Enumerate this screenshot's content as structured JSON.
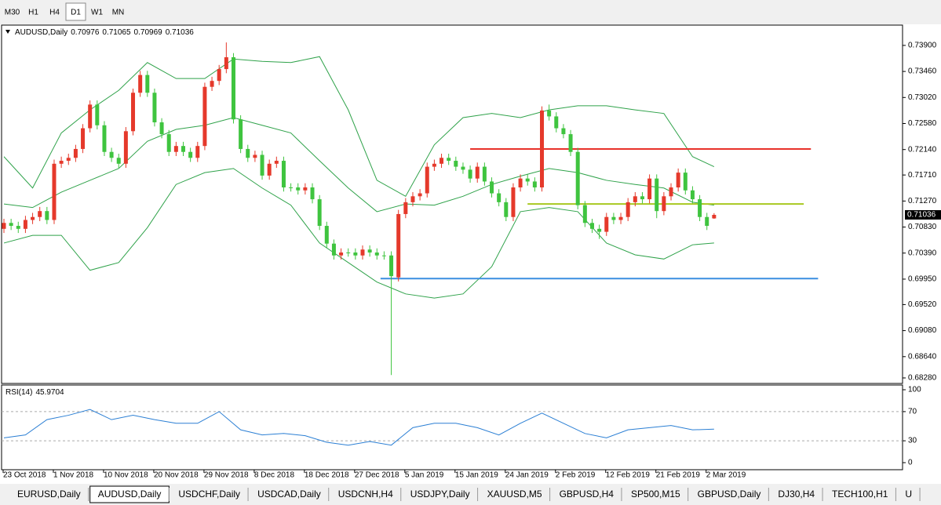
{
  "toolbar": {
    "timeframes": [
      "M30",
      "H1",
      "H4",
      "D1",
      "W1",
      "MN"
    ],
    "active": 3
  },
  "tabs": {
    "items": [
      "EURUSD,Daily",
      "AUDUSD,Daily",
      "USDCHF,Daily",
      "USDCAD,Daily",
      "USDCNH,H4",
      "USDJPY,Daily",
      "XAUUSD,M5",
      "GBPUSD,H4",
      "SP500,M15",
      "GBPUSD,Daily",
      "DJ30,H4",
      "TECH100,H1",
      "U"
    ],
    "active": 1
  },
  "chart_data": [
    {
      "type": "candlestick",
      "title": "AUDUSD,Daily",
      "categories": [
        "23 Oct 2018",
        null,
        null,
        null,
        null,
        null,
        null,
        "1 Nov 2018",
        null,
        null,
        null,
        null,
        null,
        null,
        "10 Nov 2018",
        null,
        null,
        null,
        null,
        null,
        null,
        "20 Nov 2018",
        null,
        null,
        null,
        null,
        null,
        null,
        "29 Nov 2018",
        null,
        null,
        null,
        null,
        null,
        null,
        "8 Dec 2018",
        null,
        null,
        null,
        null,
        null,
        null,
        "18 Dec 2018",
        null,
        null,
        null,
        null,
        null,
        null,
        "27 Dec 2018",
        null,
        null,
        null,
        null,
        null,
        null,
        "5 Jan 2019",
        null,
        null,
        null,
        null,
        null,
        null,
        "15 Jan 2019",
        null,
        null,
        null,
        null,
        null,
        null,
        "24 Jan 2019",
        null,
        null,
        null,
        null,
        null,
        null,
        "2 Feb 2019",
        null,
        null,
        null,
        null,
        null,
        null,
        "12 Feb 2019",
        null,
        null,
        null,
        null,
        null,
        null,
        "21 Feb 2019",
        null,
        null,
        null,
        null,
        null,
        null,
        "2 Mar 2019",
        null
      ],
      "ohlc": [
        [
          0.708,
          0.7097,
          0.7073,
          0.709
        ],
        [
          0.709,
          0.7097,
          0.7078,
          0.7085
        ],
        [
          0.7085,
          0.7092,
          0.7073,
          0.708
        ],
        [
          0.708,
          0.7102,
          0.7073,
          0.7095
        ],
        [
          0.7095,
          0.7107,
          0.7088,
          0.71
        ],
        [
          0.71,
          0.7117,
          0.7093,
          0.711
        ],
        [
          0.711,
          0.7117,
          0.7088,
          0.7095
        ],
        [
          0.7095,
          0.7197,
          0.7088,
          0.719
        ],
        [
          0.719,
          0.7202,
          0.7183,
          0.7195
        ],
        [
          0.7195,
          0.7207,
          0.7188,
          0.72
        ],
        [
          0.72,
          0.7222,
          0.7193,
          0.7215
        ],
        [
          0.7215,
          0.7257,
          0.7208,
          0.725
        ],
        [
          0.725,
          0.7297,
          0.7243,
          0.729
        ],
        [
          0.729,
          0.7297,
          0.7248,
          0.7255
        ],
        [
          0.7255,
          0.7262,
          0.7203,
          0.721
        ],
        [
          0.721,
          0.7217,
          0.7193,
          0.72
        ],
        [
          0.72,
          0.7207,
          0.7183,
          0.719
        ],
        [
          0.719,
          0.7252,
          0.7183,
          0.7245
        ],
        [
          0.7245,
          0.7317,
          0.7238,
          0.731
        ],
        [
          0.731,
          0.7347,
          0.7303,
          0.734
        ],
        [
          0.734,
          0.7347,
          0.7303,
          0.731
        ],
        [
          0.731,
          0.7317,
          0.7253,
          0.726
        ],
        [
          0.726,
          0.7267,
          0.7233,
          0.724
        ],
        [
          0.724,
          0.7247,
          0.7203,
          0.721
        ],
        [
          0.721,
          0.7227,
          0.7203,
          0.722
        ],
        [
          0.722,
          0.7227,
          0.7203,
          0.721
        ],
        [
          0.721,
          0.7217,
          0.7193,
          0.72
        ],
        [
          0.72,
          0.7227,
          0.7193,
          0.722
        ],
        [
          0.722,
          0.7327,
          0.7213,
          0.732
        ],
        [
          0.732,
          0.7337,
          0.7313,
          0.733
        ],
        [
          0.733,
          0.7357,
          0.7323,
          0.735
        ],
        [
          0.735,
          0.7395,
          0.7343,
          0.737
        ],
        [
          0.737,
          0.7377,
          0.7258,
          0.7265
        ],
        [
          0.7265,
          0.7272,
          0.7208,
          0.7215
        ],
        [
          0.7215,
          0.7222,
          0.7193,
          0.72
        ],
        [
          0.72,
          0.7212,
          0.7193,
          0.7205
        ],
        [
          0.7205,
          0.7212,
          0.7163,
          0.717
        ],
        [
          0.717,
          0.7197,
          0.7163,
          0.719
        ],
        [
          0.719,
          0.7202,
          0.7183,
          0.7195
        ],
        [
          0.7195,
          0.7202,
          0.7143,
          0.715
        ],
        [
          0.715,
          0.7157,
          0.7143,
          0.715
        ],
        [
          0.715,
          0.7157,
          0.7138,
          0.7145
        ],
        [
          0.7145,
          0.7157,
          0.7138,
          0.715
        ],
        [
          0.715,
          0.7157,
          0.7123,
          0.713
        ],
        [
          0.713,
          0.7137,
          0.7078,
          0.7085
        ],
        [
          0.7085,
          0.7092,
          0.7048,
          0.7055
        ],
        [
          0.7055,
          0.7062,
          0.7028,
          0.7035
        ],
        [
          0.7035,
          0.7047,
          0.7028,
          0.704
        ],
        [
          0.704,
          0.7047,
          0.7033,
          0.704
        ],
        [
          0.704,
          0.7047,
          0.7028,
          0.7035
        ],
        [
          0.7035,
          0.7052,
          0.7028,
          0.7045
        ],
        [
          0.7045,
          0.7052,
          0.7033,
          0.704
        ],
        [
          0.704,
          0.7047,
          0.7028,
          0.7035
        ],
        [
          0.7035,
          0.7042,
          0.7028,
          0.7035
        ],
        [
          0.7035,
          0.7042,
          0.6833,
          0.7
        ],
        [
          0.6998,
          0.7112,
          0.6991,
          0.7105
        ],
        [
          0.7105,
          0.7132,
          0.7098,
          0.7125
        ],
        [
          0.7125,
          0.7142,
          0.7118,
          0.7135
        ],
        [
          0.7135,
          0.7147,
          0.7128,
          0.714
        ],
        [
          0.714,
          0.7192,
          0.7133,
          0.7185
        ],
        [
          0.7185,
          0.7197,
          0.7178,
          0.719
        ],
        [
          0.719,
          0.7207,
          0.7183,
          0.72
        ],
        [
          0.72,
          0.7207,
          0.7188,
          0.7195
        ],
        [
          0.7195,
          0.7202,
          0.7178,
          0.7185
        ],
        [
          0.7185,
          0.7192,
          0.7173,
          0.718
        ],
        [
          0.718,
          0.7187,
          0.7158,
          0.7165
        ],
        [
          0.7165,
          0.7192,
          0.7158,
          0.7185
        ],
        [
          0.7185,
          0.7192,
          0.7153,
          0.716
        ],
        [
          0.716,
          0.7167,
          0.7133,
          0.714
        ],
        [
          0.714,
          0.7147,
          0.7118,
          0.7125
        ],
        [
          0.7125,
          0.7132,
          0.7093,
          0.71
        ],
        [
          0.71,
          0.7157,
          0.7093,
          0.715
        ],
        [
          0.715,
          0.7172,
          0.7143,
          0.7165
        ],
        [
          0.7165,
          0.7172,
          0.7153,
          0.716
        ],
        [
          0.716,
          0.7167,
          0.7143,
          0.715
        ],
        [
          0.715,
          0.7287,
          0.7143,
          0.728
        ],
        [
          0.728,
          0.729,
          0.7263,
          0.727
        ],
        [
          0.727,
          0.7277,
          0.7243,
          0.725
        ],
        [
          0.725,
          0.7257,
          0.7233,
          0.724
        ],
        [
          0.724,
          0.7247,
          0.7203,
          0.721
        ],
        [
          0.721,
          0.7217,
          0.7113,
          0.712
        ],
        [
          0.712,
          0.7127,
          0.7083,
          0.709
        ],
        [
          0.709,
          0.7097,
          0.7073,
          0.708
        ],
        [
          0.708,
          0.7087,
          0.7063,
          0.7075
        ],
        [
          0.7075,
          0.7107,
          0.7068,
          0.71
        ],
        [
          0.71,
          0.7107,
          0.7088,
          0.7095
        ],
        [
          0.7095,
          0.7107,
          0.7088,
          0.71
        ],
        [
          0.71,
          0.7132,
          0.7093,
          0.7125
        ],
        [
          0.7125,
          0.7142,
          0.7118,
          0.7135
        ],
        [
          0.7135,
          0.7142,
          0.7123,
          0.713
        ],
        [
          0.713,
          0.7172,
          0.7123,
          0.7165
        ],
        [
          0.7165,
          0.7172,
          0.7098,
          0.711
        ],
        [
          0.711,
          0.7142,
          0.7103,
          0.7135
        ],
        [
          0.7135,
          0.7157,
          0.7128,
          0.715
        ],
        [
          0.715,
          0.7182,
          0.7143,
          0.7175
        ],
        [
          0.7175,
          0.7182,
          0.7138,
          0.7145
        ],
        [
          0.7145,
          0.7152,
          0.7123,
          0.713
        ],
        [
          0.713,
          0.7137,
          0.7093,
          0.71
        ],
        [
          0.71,
          0.7107,
          0.7078,
          0.7085
        ],
        [
          0.70976,
          0.71065,
          0.70969,
          0.71036
        ]
      ],
      "up_color": "#e5392b",
      "down_color": "#3fc43f",
      "band_x": [
        0,
        4,
        8,
        12,
        16,
        20,
        24,
        28,
        32,
        36,
        40,
        44,
        48,
        52,
        56,
        60,
        64,
        68,
        72,
        76,
        80,
        84,
        88,
        92,
        96,
        99
      ],
      "band_color": "#2fa24a",
      "bands": [
        {
          "values": [
            0.7202,
            0.7149,
            0.7242,
            0.7281,
            0.7314,
            0.7361,
            0.7334,
            0.7334,
            0.7367,
            0.7363,
            0.7361,
            0.7371,
            0.7281,
            0.7162,
            0.7135,
            0.7222,
            0.7268,
            0.7275,
            0.7268,
            0.7281,
            0.7288,
            0.7288,
            0.7281,
            0.7275,
            0.7202,
            0.7185
          ]
        },
        {
          "values": [
            0.7122,
            0.7116,
            0.7142,
            0.7162,
            0.7182,
            0.7228,
            0.7248,
            0.7255,
            0.7268,
            0.7255,
            0.7242,
            0.7195,
            0.7149,
            0.7109,
            0.7122,
            0.712,
            0.7135,
            0.7155,
            0.7169,
            0.7182,
            0.7175,
            0.7162,
            0.7155,
            0.7149,
            0.7125,
            0.712
          ]
        },
        {
          "values": [
            0.7056,
            0.7069,
            0.7069,
            0.701,
            0.7023,
            0.7082,
            0.7155,
            0.7175,
            0.7182,
            0.7149,
            0.712,
            0.7056,
            0.7023,
            0.699,
            0.697,
            0.6963,
            0.697,
            0.7016,
            0.7109,
            0.7116,
            0.7109,
            0.7056,
            0.7036,
            0.7029,
            0.7053,
            0.7056
          ]
        }
      ],
      "levels": [
        {
          "value": 0.7215,
          "color": "#e8322a",
          "from": 65,
          "to": 112.5
        },
        {
          "value": 0.7122,
          "color": "#a8c820",
          "from": 73,
          "to": 111.5
        },
        {
          "value": 0.6996,
          "color": "#3a8ee0",
          "from": 52.5,
          "to": 113.5
        }
      ],
      "ylim": [
        0.682,
        0.7423
      ],
      "yticks": [
        {
          "value": 0.739,
          "label": "0.73900"
        },
        {
          "value": 0.7346,
          "label": "0.73460"
        },
        {
          "value": 0.7302,
          "label": "0.73020"
        },
        {
          "value": 0.7258,
          "label": "0.72580"
        },
        {
          "value": 0.7214,
          "label": "0.72140"
        },
        {
          "value": 0.7171,
          "label": "0.71710"
        },
        {
          "value": 0.7127,
          "label": "0.71270"
        },
        {
          "value": 0.7083,
          "label": "0.70830"
        },
        {
          "value": 0.7039,
          "label": "0.70390"
        },
        {
          "value": 0.6995,
          "label": "0.69950"
        },
        {
          "value": 0.6952,
          "label": "0.69520"
        },
        {
          "value": 0.6908,
          "label": "0.69080"
        },
        {
          "value": 0.6864,
          "label": "0.68640"
        },
        {
          "value": 0.6828,
          "label": "0.68280"
        }
      ]
    },
    {
      "type": "line",
      "title": "RSI(14)",
      "x": [
        0,
        3,
        6,
        9,
        12,
        15,
        18,
        21,
        24,
        27,
        30,
        33,
        36,
        39,
        42,
        45,
        48,
        51,
        54,
        57,
        60,
        63,
        66,
        69,
        72,
        75,
        78,
        81,
        84,
        87,
        90,
        93,
        96,
        99
      ],
      "values": [
        34,
        38,
        59,
        65,
        73,
        59,
        65,
        59,
        54,
        54,
        70,
        45,
        38,
        40,
        37,
        28,
        24,
        29,
        24,
        48,
        54,
        54,
        48,
        38,
        54,
        68,
        54,
        40,
        34,
        45,
        48,
        51,
        45,
        45.9704
      ],
      "color": "#2b7fd4",
      "ylim": [
        -8.6,
        105.4
      ],
      "yticks": [
        100,
        70,
        30,
        0
      ],
      "levels": [
        70,
        30
      ]
    }
  ]
}
